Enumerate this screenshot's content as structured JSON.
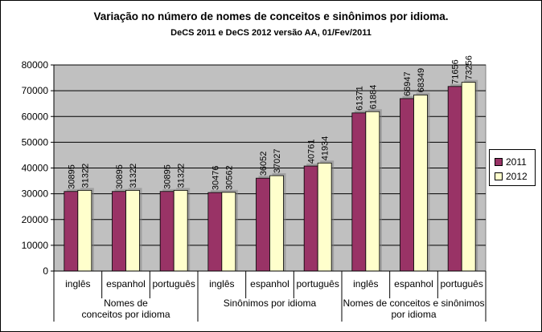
{
  "chart_data": {
    "type": "bar",
    "title": "Variação no número de nomes de conceitos e sinônimos por idioma.",
    "subtitle": "DeCS 2011 e DeCS 2012 versão AA, 01/Fev/2011",
    "ylim": [
      0,
      80000
    ],
    "yticks": [
      "0",
      "10000",
      "20000",
      "30000",
      "40000",
      "50000",
      "60000",
      "70000",
      "80000"
    ],
    "grid": "horizontal",
    "legend_position": "right",
    "categories": [
      "inglês",
      "espanhol",
      "português",
      "inglês",
      "espanhol",
      "português",
      "inglês",
      "espanhol",
      "português"
    ],
    "groups": [
      {
        "label_lines": [
          "Nomes de",
          "conceitos por idioma"
        ]
      },
      {
        "label_lines": [
          "Sinônimos por idioma"
        ]
      },
      {
        "label_lines": [
          "Nomes de conceitos e sinônimos",
          "por idioma"
        ]
      }
    ],
    "series": [
      {
        "name": "2011",
        "color": "#993366",
        "values": [
          30895,
          30895,
          30895,
          30476,
          36052,
          40761,
          61371,
          66947,
          71656
        ]
      },
      {
        "name": "2012",
        "color": "#FFFFCC",
        "values": [
          31322,
          31322,
          31322,
          30562,
          37027,
          41934,
          61884,
          68349,
          73256
        ]
      }
    ]
  }
}
